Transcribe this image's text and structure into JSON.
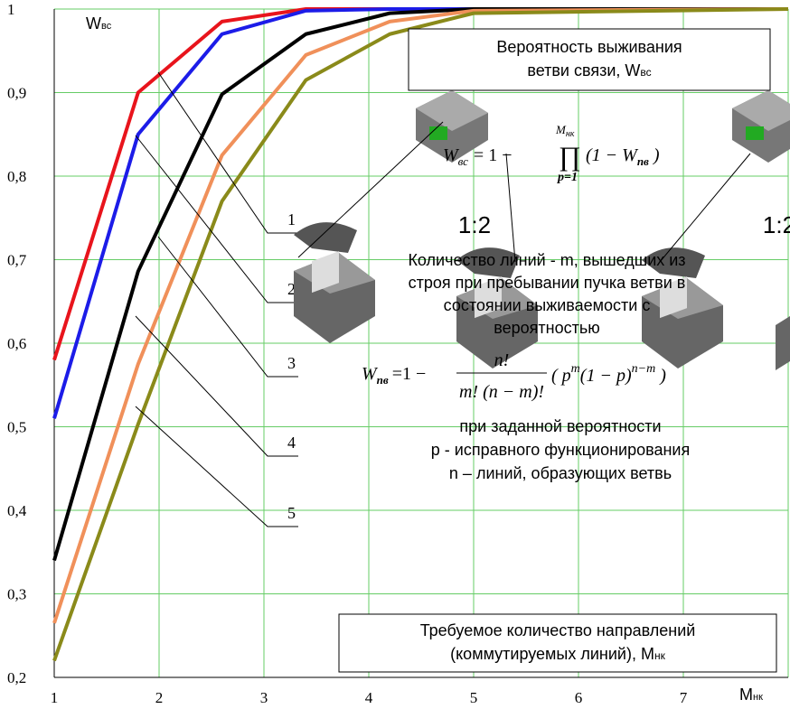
{
  "chart_data": {
    "type": "line",
    "x": [
      1,
      1.8,
      2.6,
      3.4,
      4.2,
      5,
      8
    ],
    "series": [
      {
        "name": "1",
        "color": "#e8141c",
        "values": [
          0.58,
          0.9,
          0.985,
          1.0,
          1.0,
          1.0,
          1.0
        ]
      },
      {
        "name": "2",
        "color": "#1c1ce8",
        "values": [
          0.51,
          0.85,
          0.97,
          0.998,
          1.0,
          1.0,
          1.0
        ]
      },
      {
        "name": "3",
        "color": "#000000",
        "values": [
          0.34,
          0.686,
          0.898,
          0.97,
          0.995,
          1.0,
          1.0
        ]
      },
      {
        "name": "4",
        "color": "#f0905a",
        "values": [
          0.265,
          0.575,
          0.825,
          0.945,
          0.985,
          0.998,
          1.0
        ]
      },
      {
        "name": "5",
        "color": "#8a8a1a",
        "values": [
          0.22,
          0.503,
          0.77,
          0.915,
          0.97,
          0.995,
          1.0
        ]
      }
    ],
    "xlim": [
      1,
      8
    ],
    "xticks": [
      1,
      2,
      3,
      4,
      5,
      6,
      7
    ],
    "ylim": [
      0.2,
      1.0
    ],
    "yticks": [
      {
        "value": 0.2,
        "label": "0,2"
      },
      {
        "value": 0.3,
        "label": "0,3"
      },
      {
        "value": 0.4,
        "label": "0,4"
      },
      {
        "value": 0.5,
        "label": "0,5"
      },
      {
        "value": 0.6,
        "label": "0,6"
      },
      {
        "value": 0.7,
        "label": "0,7"
      },
      {
        "value": 0.8,
        "label": "0,8"
      },
      {
        "value": 0.9,
        "label": "0,9"
      },
      1
    ],
    "grid": true,
    "grid_color": "#66cc66",
    "x_label": {
      "main": "M",
      "sub": "нк"
    },
    "y_label": {
      "main": "W",
      "sub": "вс"
    }
  },
  "annotations": {
    "box_top": [
      "Вероятность выживания",
      "ветви связи, W"
    ],
    "box_top_sub": "вс",
    "formula1": {
      "lhs": "W",
      "lhs_sub": "вс",
      "eq": "= 1 −",
      "prod": "∏",
      "top": "M",
      "top_sub": "нк",
      "bottom": "p=1",
      "body": "(1 − W",
      "body_sub": "пв",
      "close": " )"
    },
    "ratio": [
      "1:2",
      "1:2"
    ],
    "middle": [
      "Количество линий - m, вышедших из",
      "строя при  пребывании пучка ветви в",
      "состоянии выживаемости с",
      "вероятностью"
    ],
    "formula2": {
      "lhs": "W",
      "lhs_sub": "пв",
      "eq": "=1 −",
      "num": "n!",
      "den": "m! (n − m)!",
      "open": "( p",
      "sup1": "m",
      "mid": "(1 − p)",
      "sup2": "n−m",
      "close": " )"
    },
    "condition": [
      "при заданной вероятности",
      "p -  исправного  функционирования",
      "n – линий, образующих ветвь"
    ],
    "box_bottom": [
      "Требуемое количество направлений",
      "(коммутируемых линий), M"
    ],
    "box_bottom_sub": "нк"
  }
}
